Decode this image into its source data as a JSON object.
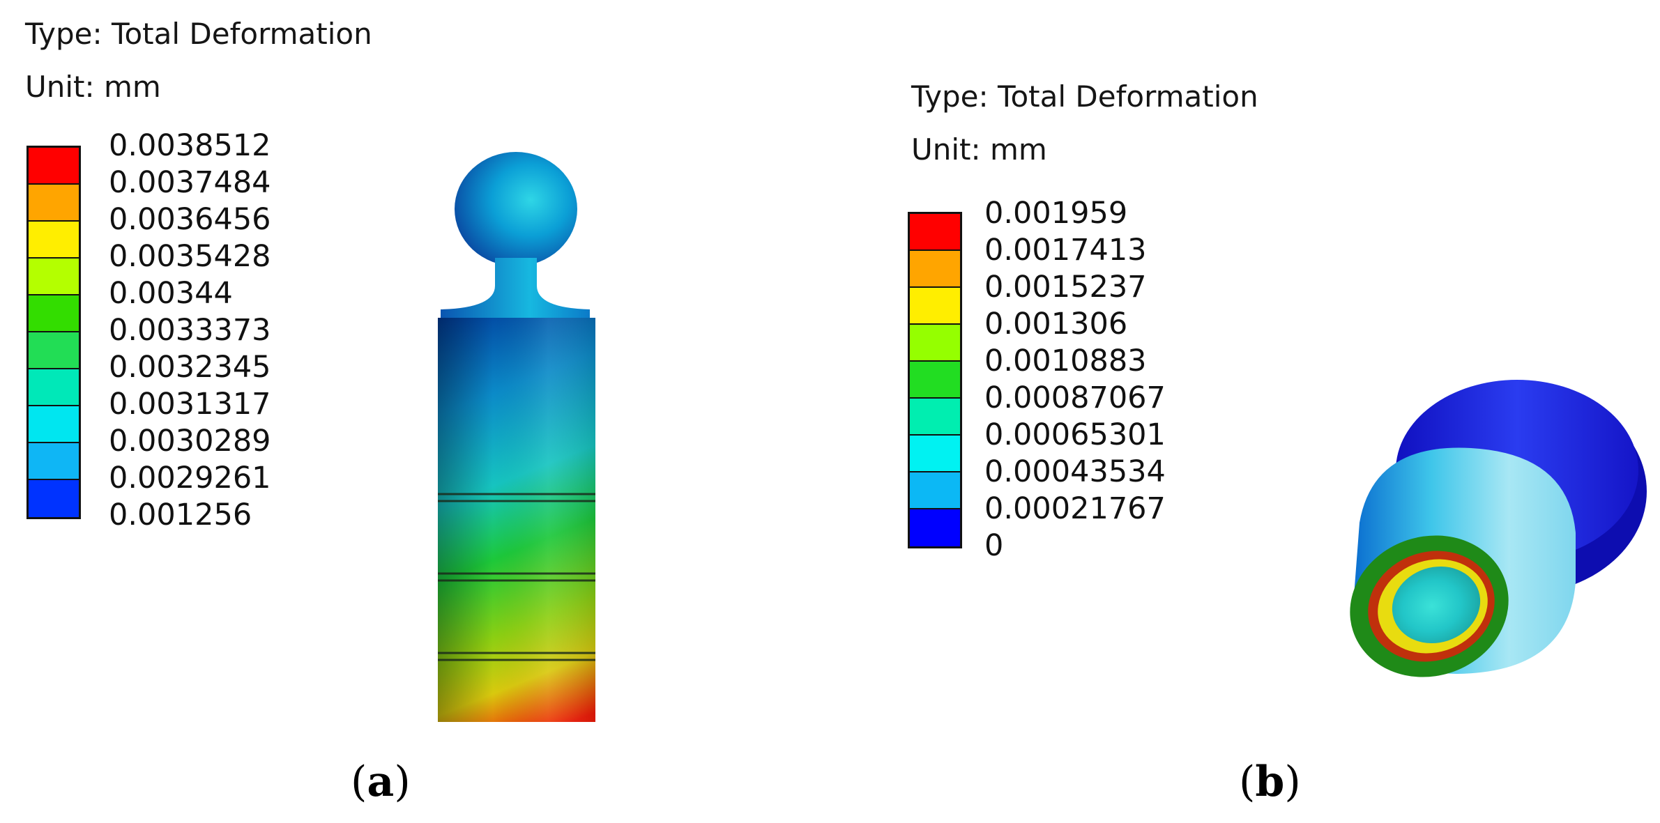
{
  "panels": [
    {
      "id": "a",
      "type_label": "Type: Total Deformation",
      "unit_label": "Unit: mm",
      "legend_values": [
        "0.0038512",
        "0.0037484",
        "0.0036456",
        "0.0035428",
        "0.00344",
        "0.0033373",
        "0.0032345",
        "0.0031317",
        "0.0030289",
        "0.0029261",
        "0.001256"
      ],
      "legend_colors": [
        "#ff0000",
        "#ffa500",
        "#ffee00",
        "#b4ff00",
        "#33dd00",
        "#22dd55",
        "#00e8b8",
        "#00e6f0",
        "#0fb6f5",
        "#0033ff"
      ],
      "caption_open": "(",
      "caption_letter": "a",
      "caption_close": ")"
    },
    {
      "id": "b",
      "type_label": "Type: Total Deformation",
      "unit_label": "Unit: mm",
      "legend_values": [
        "0.001959",
        "0.0017413",
        "0.0015237",
        "0.001306",
        "0.0010883",
        "0.00087067",
        "0.00065301",
        "0.00043534",
        "0.00021767",
        "0"
      ],
      "legend_colors": [
        "#ff0000",
        "#ffa500",
        "#ffee00",
        "#95ff00",
        "#22dd22",
        "#00eeb0",
        "#00f2f2",
        "#0cb8f5",
        "#0000ff"
      ],
      "caption_open": "(",
      "caption_letter": "b",
      "caption_close": ")"
    }
  ]
}
